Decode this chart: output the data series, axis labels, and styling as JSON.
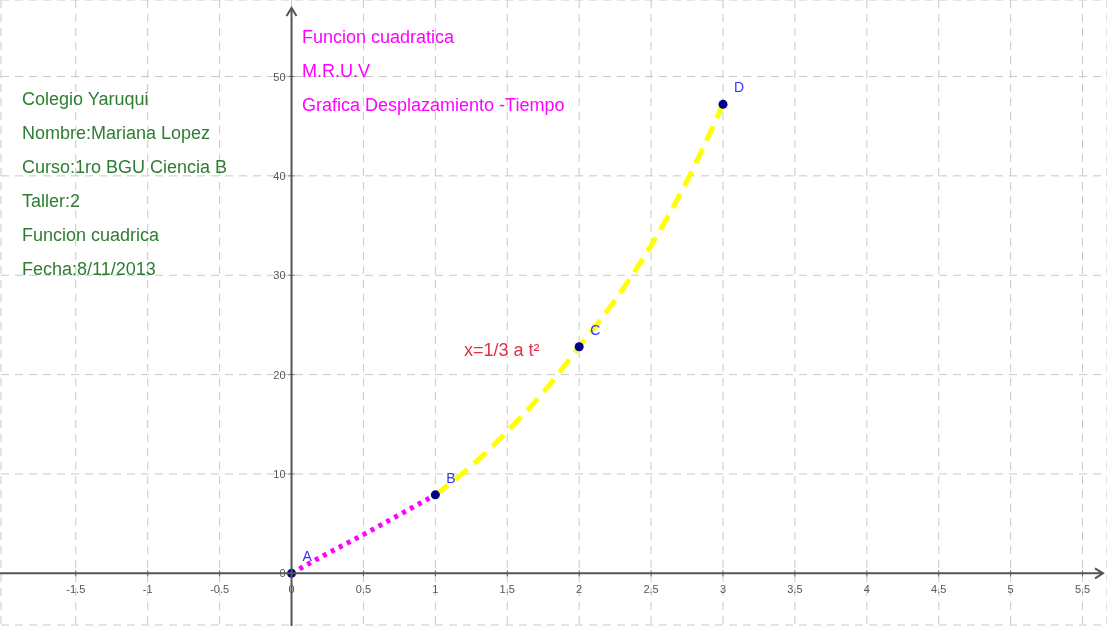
{
  "chart_data": {
    "type": "line",
    "title": "Funcion cuadratica",
    "subtitle": "M.R.U.V",
    "annotations": [
      "Grafica Desplazamiento -Tiempo",
      "x=1/3 a t²",
      "Colegio Yaruqui",
      "Nombre:Mariana Lopez",
      "Curso:1ro BGU Ciencia B",
      "Taller:2",
      "Funcion cuadrica",
      "Fecha:8/11/2013",
      {
        "text": "A",
        "x": 0,
        "y": 0
      },
      {
        "text": "B",
        "x": 1,
        "y": 7.9
      },
      {
        "text": "C",
        "x": 2,
        "y": 22.8
      },
      {
        "text": "D",
        "x": 3,
        "y": 47.2
      }
    ],
    "xlim": [
      -2.02,
      5.67
    ],
    "xticks": [
      -1.5,
      -1,
      -0.5,
      0,
      0.5,
      1,
      1.5,
      2,
      2.5,
      3,
      3.5,
      4,
      4.5,
      5,
      5.5
    ],
    "ylim": [
      -5.2,
      57.7
    ],
    "yticks": [
      0,
      10,
      20,
      30,
      40,
      50
    ],
    "grid": true,
    "series": [
      {
        "color": "#ff00ff",
        "line_style": "dotted",
        "marker": "none",
        "x": [
          0,
          0.25,
          0.5,
          0.75,
          1
        ],
        "values": [
          0,
          2,
          3.9,
          5.9,
          7.9
        ]
      },
      {
        "color": "#ffff00",
        "line_style": "dashed",
        "marker": "none",
        "x": [
          1,
          1.25,
          1.5,
          1.75,
          2,
          2.25,
          2.5,
          2.75,
          3
        ],
        "values": [
          7.9,
          10.8,
          14.3,
          18.2,
          22.8,
          27.5,
          33,
          39.5,
          47.2
        ]
      },
      {
        "type": "scatter",
        "color": "#00008b",
        "marker": "circle",
        "x": [
          0,
          1,
          2,
          3
        ],
        "values": [
          0,
          7.9,
          22.8,
          47.2
        ]
      }
    ]
  }
}
